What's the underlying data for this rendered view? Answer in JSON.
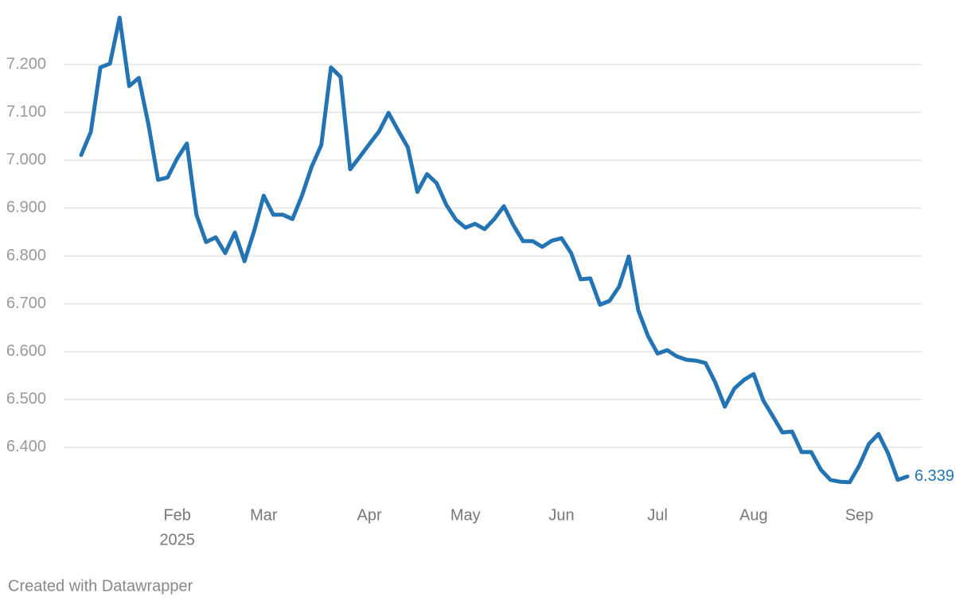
{
  "chart_data": {
    "type": "line",
    "categories": [
      null,
      null,
      null,
      null,
      null,
      null,
      null,
      null,
      null,
      null,
      "Feb",
      null,
      null,
      null,
      null,
      null,
      null,
      null,
      null,
      "Mar",
      null,
      null,
      null,
      null,
      null,
      null,
      null,
      null,
      null,
      null,
      "Apr",
      null,
      null,
      null,
      null,
      null,
      null,
      null,
      null,
      null,
      "May",
      null,
      null,
      null,
      null,
      null,
      null,
      null,
      null,
      null,
      "Jun",
      null,
      null,
      null,
      null,
      null,
      null,
      null,
      null,
      null,
      "Jul",
      null,
      null,
      null,
      null,
      null,
      null,
      null,
      null,
      null,
      "Aug",
      null,
      null,
      null,
      null,
      null,
      null,
      null,
      null,
      null,
      null,
      "Sep",
      null,
      null,
      null,
      null,
      null
    ],
    "year_label": "2025",
    "values": [
      7.011,
      7.059,
      7.194,
      7.202,
      7.298,
      7.155,
      7.172,
      7.075,
      6.959,
      6.964,
      7.004,
      7.035,
      6.886,
      6.829,
      6.839,
      6.806,
      6.849,
      6.789,
      6.852,
      6.926,
      6.886,
      6.886,
      6.877,
      6.927,
      6.987,
      7.032,
      7.194,
      7.174,
      6.981,
      7.007,
      7.034,
      7.06,
      7.099,
      7.062,
      7.027,
      6.934,
      6.971,
      6.952,
      6.907,
      6.876,
      6.859,
      6.867,
      6.856,
      6.877,
      6.904,
      6.864,
      6.831,
      6.831,
      6.819,
      6.832,
      6.837,
      6.806,
      6.751,
      6.753,
      6.698,
      6.706,
      6.736,
      6.799,
      6.686,
      6.633,
      6.596,
      6.603,
      6.59,
      6.583,
      6.581,
      6.576,
      6.536,
      6.485,
      6.523,
      6.541,
      6.553,
      6.498,
      6.465,
      6.431,
      6.433,
      6.39,
      6.39,
      6.353,
      6.332,
      6.328,
      6.327,
      6.362,
      6.407,
      6.428,
      6.387,
      6.332,
      6.339
    ],
    "color": "#2474b4",
    "ylim": [
      6.3,
      7.3
    ],
    "yticks": [
      {
        "value": 6.4,
        "label": "6.400"
      },
      {
        "value": 6.5,
        "label": "6.500"
      },
      {
        "value": 6.6,
        "label": "6.600"
      },
      {
        "value": 6.7,
        "label": "6.700"
      },
      {
        "value": 6.8,
        "label": "6.800"
      },
      {
        "value": 6.9,
        "label": "6.900"
      },
      {
        "value": 7.0,
        "label": "7.000"
      },
      {
        "value": 7.1,
        "label": "7.100"
      },
      {
        "value": 7.2,
        "label": "7.200"
      }
    ],
    "grid": true,
    "credit": "Created with Datawrapper"
  }
}
